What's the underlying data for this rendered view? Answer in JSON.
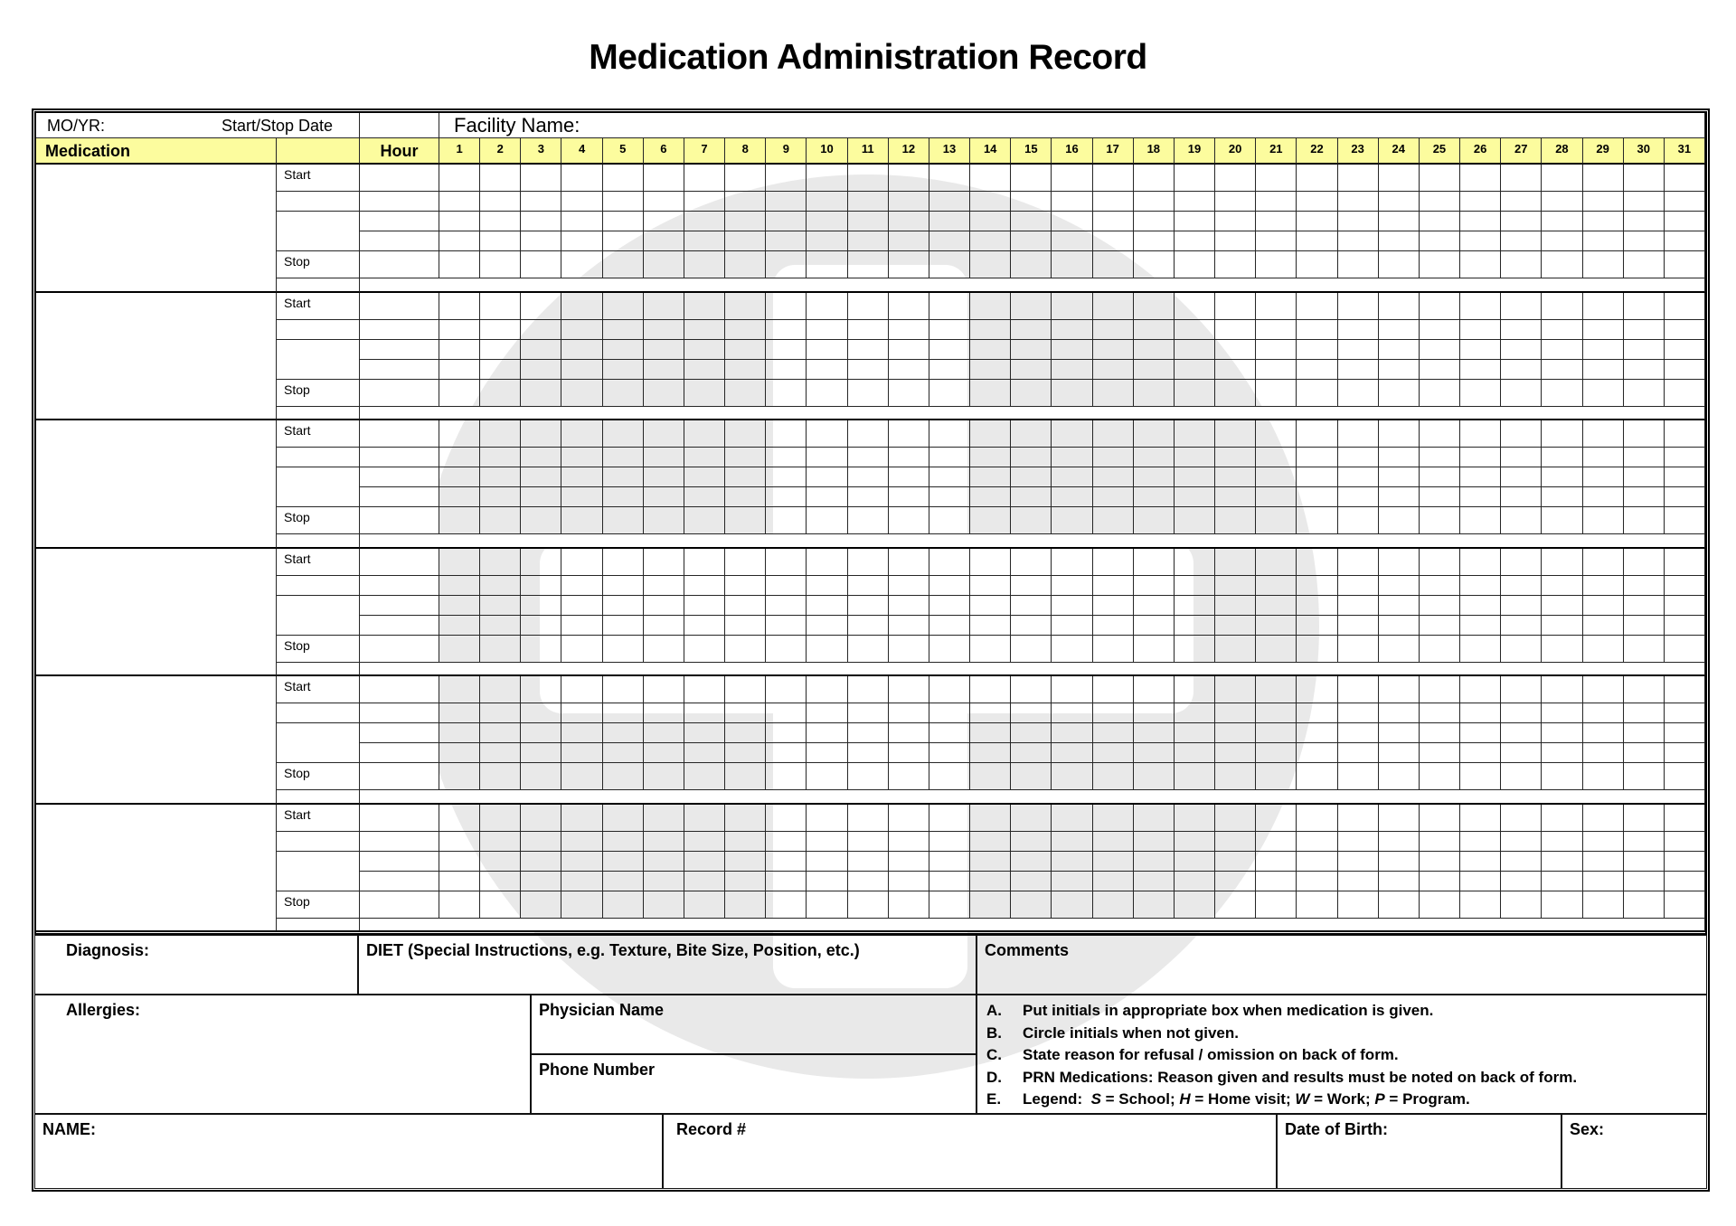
{
  "title": "Medication Administration Record",
  "header": {
    "mo_yr": "MO/YR:",
    "start_stop_date": "Start/Stop Date",
    "facility": "Facility Name:",
    "medication": "Medication",
    "hour": "Hour",
    "days": [
      1,
      2,
      3,
      4,
      5,
      6,
      7,
      8,
      9,
      10,
      11,
      12,
      13,
      14,
      15,
      16,
      17,
      18,
      19,
      20,
      21,
      22,
      23,
      24,
      25,
      26,
      27,
      28,
      29,
      30,
      31
    ]
  },
  "med_grid": {
    "blocks": 6,
    "start_label": "Start",
    "stop_label": "Stop"
  },
  "bottom": {
    "diagnosis": "Diagnosis:",
    "diet": "DIET (Special Instructions, e.g. Texture, Bite Size, Position, etc.)",
    "comments": "Comments",
    "allergies": "Allergies:",
    "physician": "Physician Name",
    "phone": "Phone Number",
    "name": "NAME:",
    "record": "Record #",
    "dob": "Date of Birth:",
    "sex": "Sex:"
  },
  "instructions": {
    "items": [
      {
        "letter": "A.",
        "parts": [
          {
            "t": "Put initials in appropriate box when medication is given."
          }
        ]
      },
      {
        "letter": "B.",
        "parts": [
          {
            "t": "Circle initials when not given."
          }
        ]
      },
      {
        "letter": "C.",
        "parts": [
          {
            "t": "State reason for refusal / omission on back of form."
          }
        ]
      },
      {
        "letter": "D.",
        "parts": [
          {
            "t": "PRN Medications: Reason given and results must be noted on back of form."
          }
        ]
      },
      {
        "letter": "E.",
        "parts": [
          {
            "t": "Legend:  "
          },
          {
            "t": "S",
            "i": true
          },
          {
            "t": " = School; "
          },
          {
            "t": "H",
            "i": true
          },
          {
            "t": " = Home visit; "
          },
          {
            "t": "W",
            "i": true
          },
          {
            "t": " = Work; "
          },
          {
            "t": "P",
            "i": true
          },
          {
            "t": " = Program."
          }
        ]
      }
    ]
  },
  "colors": {
    "header_yellow": "#fcfc9e",
    "edge_bar": "#34525e",
    "watermark_gray": "#e9e9e9",
    "grid_line": "#262626"
  }
}
